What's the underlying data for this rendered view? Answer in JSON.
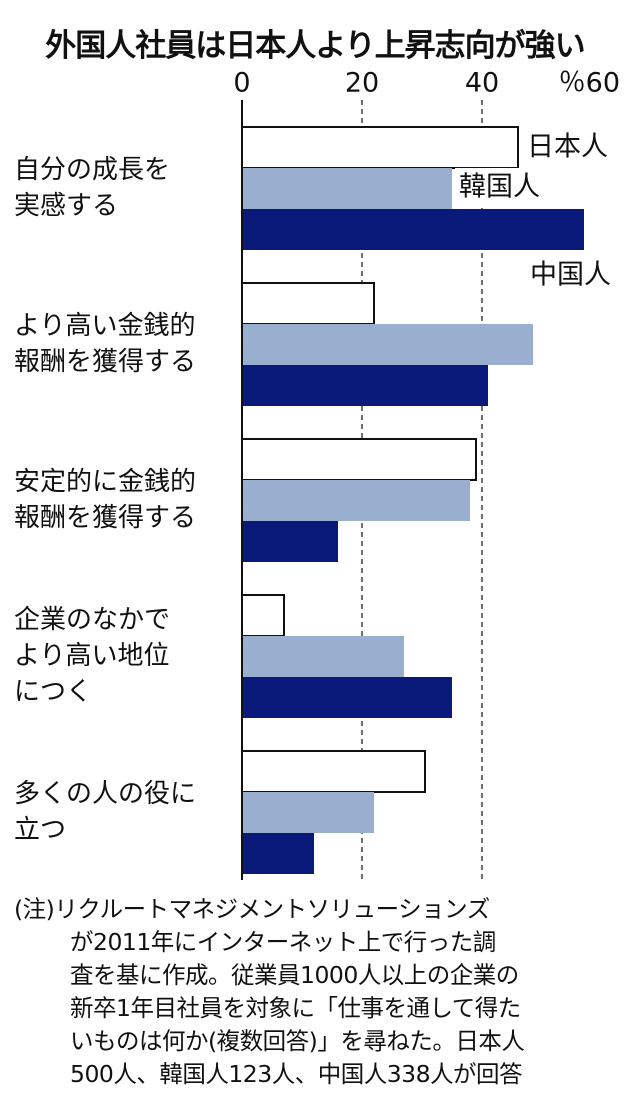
{
  "chart_data": {
    "type": "hbar",
    "title": "外国人社員は日本人より上昇志向が強い",
    "categories": [
      "自分の成長を\n実感する",
      "より高い金銭的\n報酬を獲得する",
      "安定的に金銭的\n報酬を獲得する",
      "企業のなかで\nより高い地位\nにつく",
      "多くの人の役に\n立つ"
    ],
    "series": [
      {
        "name": "日本人",
        "color": "#ffffff",
        "values": [
          46,
          22,
          39,
          7,
          30.5
        ]
      },
      {
        "name": "韓国人",
        "color": "#9aaed0",
        "values": [
          35,
          48.5,
          38,
          27,
          22
        ]
      },
      {
        "name": "中国人",
        "color": "#0a1a7a",
        "values": [
          57,
          41,
          16,
          35,
          12
        ]
      }
    ],
    "xlim": [
      0,
      60
    ],
    "xticks": [
      0,
      20,
      40,
      {
        "value": 60,
        "label": "％60"
      }
    ],
    "grid": true,
    "note": "(注)リクルートマネジメントソリューションズ\nが2011年にインターネット上で行った調\n査を基に作成。従業員1000人以上の企業の\n新卒1年目社員を対象に「仕事を通して得た\nいものは何か(複数回答)」を尋ねた。日本人\n500人、韓国人123人、中国人338人が回答"
  }
}
